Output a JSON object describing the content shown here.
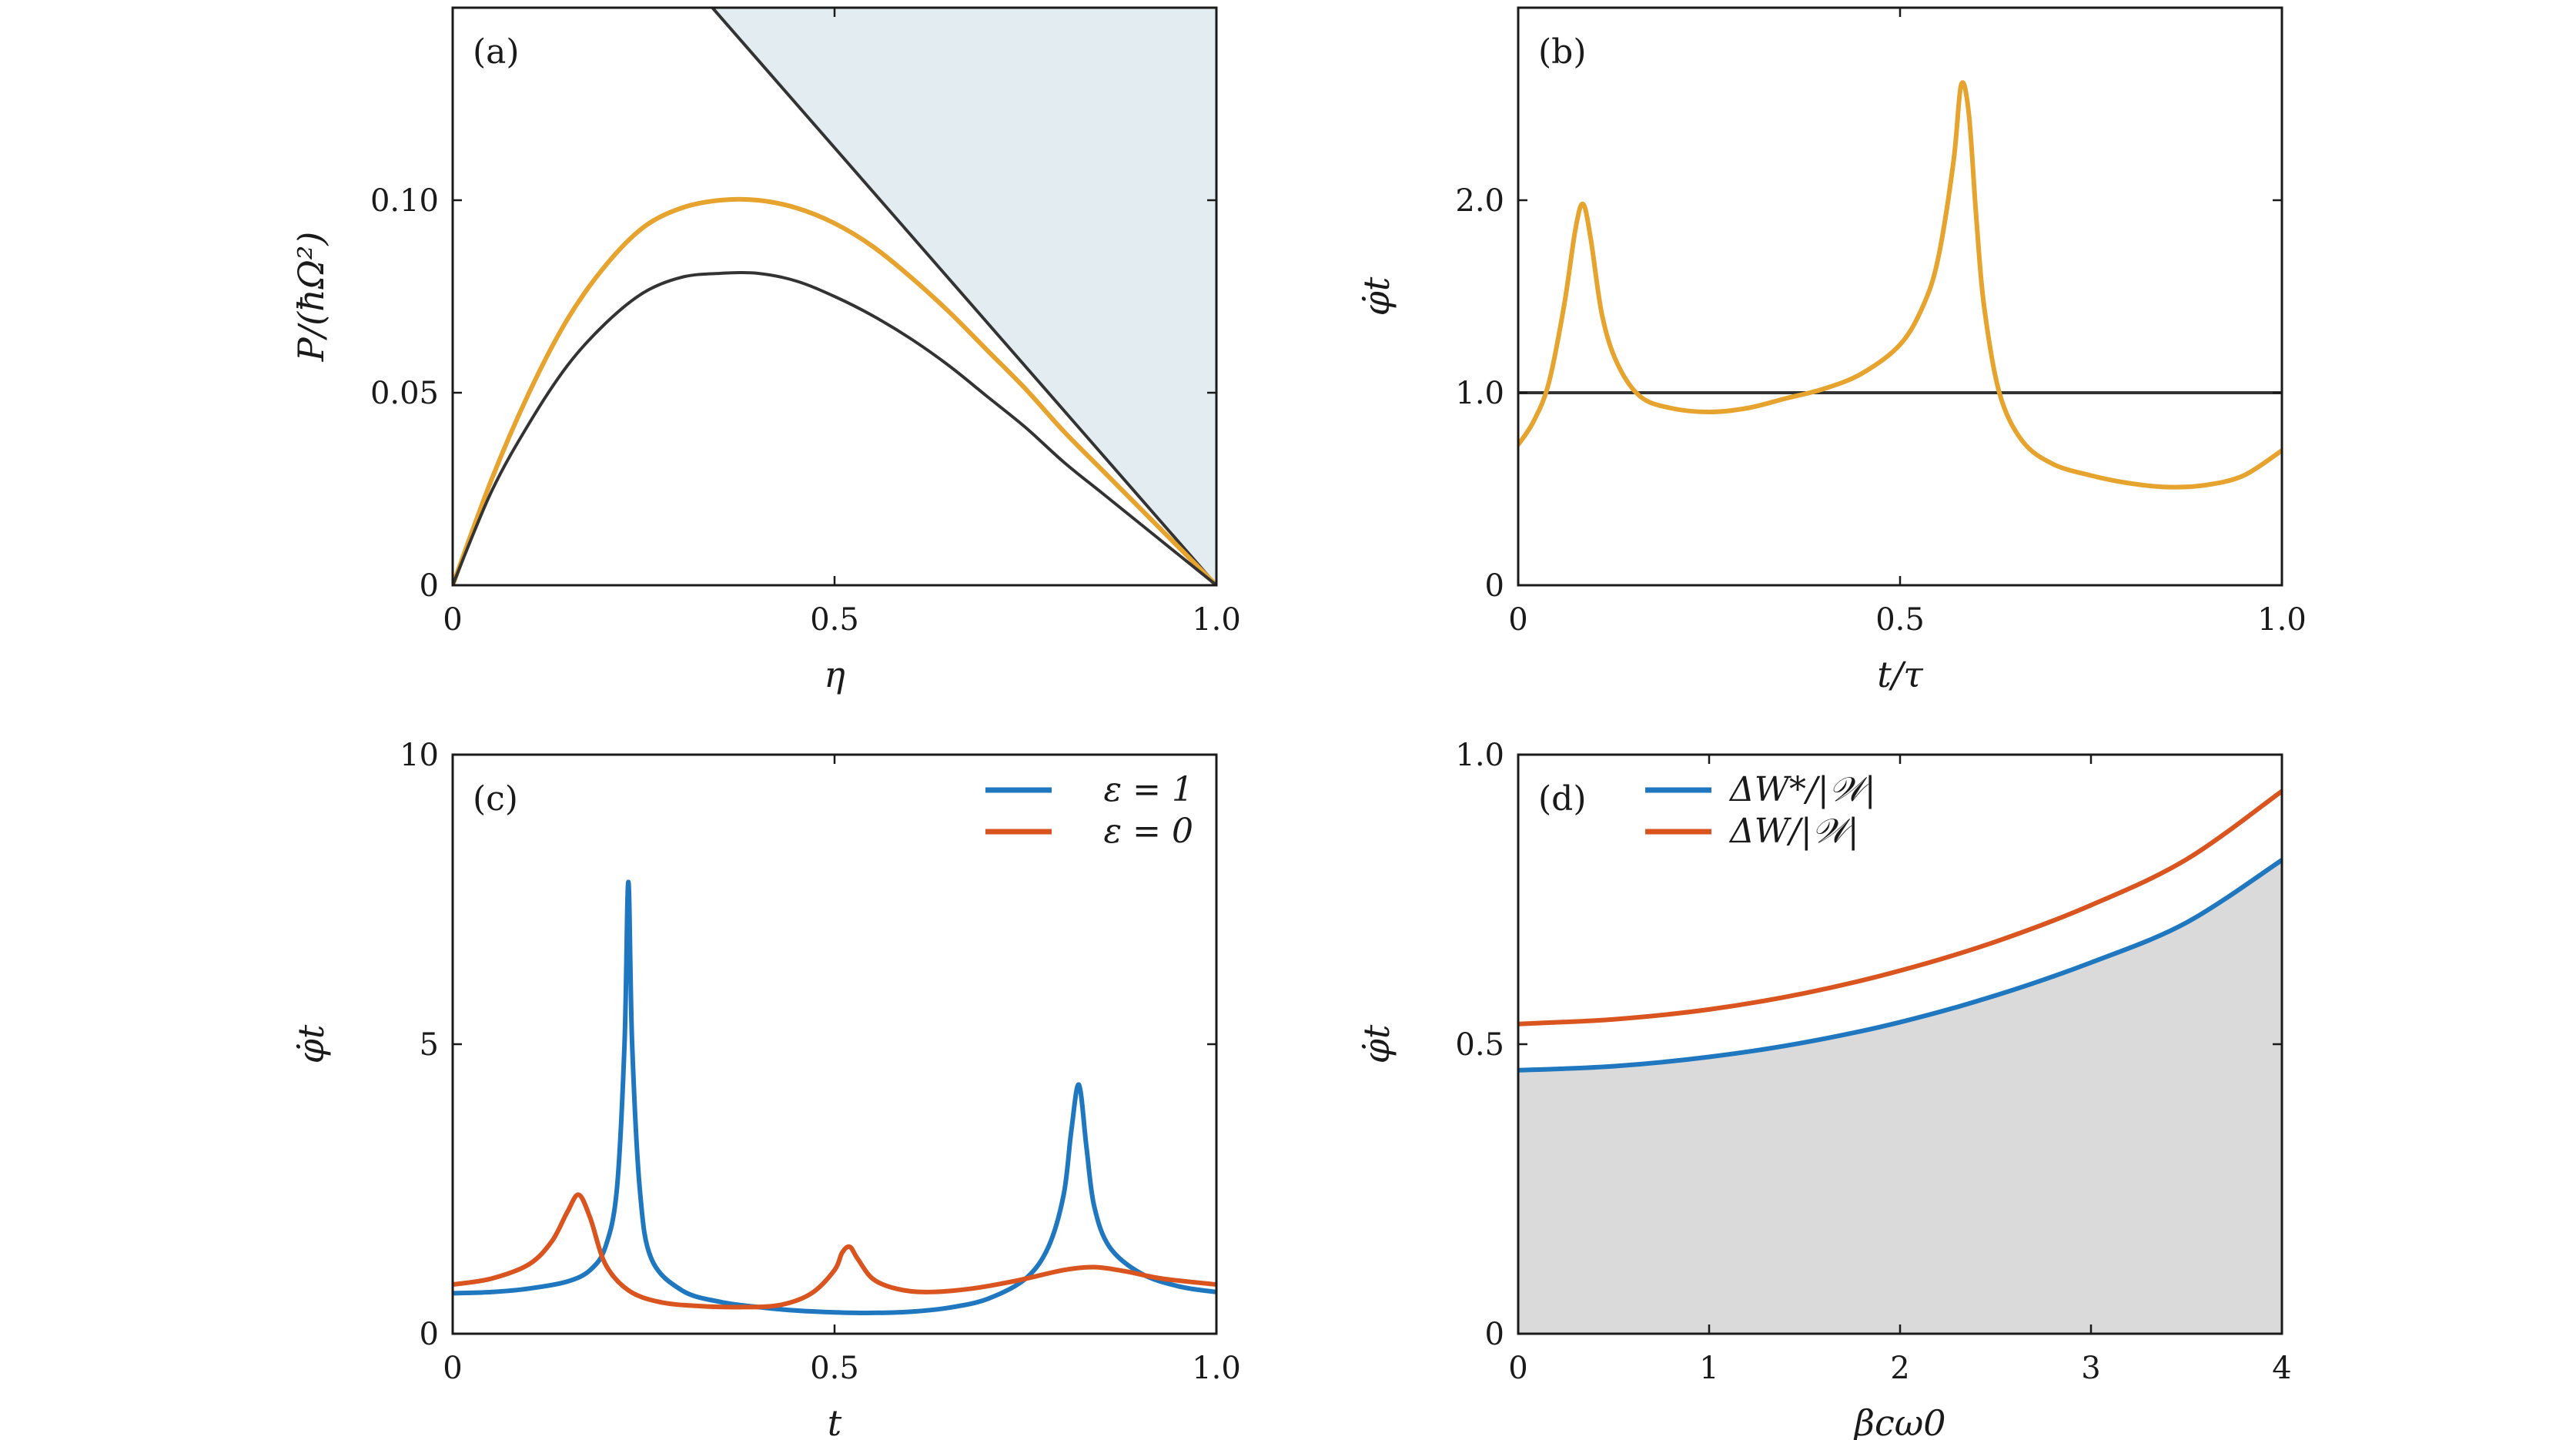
{
  "colors": {
    "orange": "#E6A32E",
    "blue": "#1F77C0",
    "red": "#D9541E",
    "black": "#333333",
    "shade_a": "#E3ECF0",
    "shade_d": "#DADADA"
  },
  "chart_data": [
    {
      "panel_label": "(a)",
      "type": "line",
      "xlabel": "η",
      "ylabel": "P/(ħΩ²)",
      "xlim": [
        0,
        1.0
      ],
      "ylim": [
        0,
        0.15
      ],
      "xticks": [
        0,
        0.5,
        1.0
      ],
      "xtick_labels": [
        "0",
        "0.5",
        "1.0"
      ],
      "yticks": [
        0,
        0.05,
        0.1
      ],
      "ytick_labels": [
        "0",
        "0.05",
        "0.10"
      ],
      "shaded_region": {
        "boundary_x": [
          0.34,
          1.0
        ],
        "boundary_y": [
          0.15,
          0.0
        ],
        "color": "#E3ECF0"
      },
      "series": [
        {
          "color": "#333333",
          "x": [
            0.34,
            1.0
          ],
          "y": [
            0.15,
            0.0
          ]
        },
        {
          "color": "#E6A32E",
          "x": [
            0,
            0.05,
            0.1,
            0.15,
            0.2,
            0.25,
            0.3,
            0.35,
            0.4,
            0.45,
            0.5,
            0.55,
            0.6,
            0.65,
            0.7,
            0.75,
            0.8,
            0.85,
            0.9,
            0.95,
            1.0
          ],
          "y": [
            0,
            0.027,
            0.05,
            0.069,
            0.083,
            0.093,
            0.098,
            0.1,
            0.1,
            0.098,
            0.094,
            0.088,
            0.08,
            0.071,
            0.061,
            0.051,
            0.04,
            0.03,
            0.02,
            0.01,
            0
          ]
        },
        {
          "color": "#333333",
          "x": [
            0,
            0.05,
            0.1,
            0.15,
            0.2,
            0.25,
            0.3,
            0.35,
            0.4,
            0.45,
            0.5,
            0.55,
            0.6,
            0.65,
            0.7,
            0.75,
            0.8,
            0.85,
            0.9,
            0.95,
            1.0
          ],
          "y": [
            0,
            0.024,
            0.042,
            0.057,
            0.068,
            0.076,
            0.08,
            0.081,
            0.081,
            0.079,
            0.075,
            0.07,
            0.064,
            0.057,
            0.049,
            0.041,
            0.032,
            0.024,
            0.016,
            0.008,
            0
          ]
        }
      ]
    },
    {
      "panel_label": "(b)",
      "type": "line",
      "xlabel": "t/τ",
      "ylabel": "φ̇t",
      "xlim": [
        0,
        1.0
      ],
      "ylim": [
        0,
        3.0
      ],
      "xticks": [
        0,
        0.5,
        1.0
      ],
      "xtick_labels": [
        "0",
        "0.5",
        "1.0"
      ],
      "yticks": [
        0,
        1.0,
        2.0
      ],
      "ytick_labels": [
        "0",
        "1.0",
        "2.0"
      ],
      "series": [
        {
          "color": "#333333",
          "x": [
            0,
            1.0
          ],
          "y": [
            1.0,
            1.0
          ]
        },
        {
          "color": "#E6A32E",
          "x": [
            0,
            0.02,
            0.04,
            0.06,
            0.075,
            0.085,
            0.095,
            0.11,
            0.13,
            0.16,
            0.2,
            0.25,
            0.3,
            0.35,
            0.4,
            0.45,
            0.5,
            0.53,
            0.55,
            0.57,
            0.58,
            0.59,
            0.6,
            0.61,
            0.63,
            0.66,
            0.7,
            0.75,
            0.8,
            0.85,
            0.9,
            0.95,
            1.0
          ],
          "y": [
            0.73,
            0.85,
            1.05,
            1.45,
            1.85,
            1.98,
            1.8,
            1.4,
            1.15,
            0.98,
            0.92,
            0.9,
            0.92,
            0.97,
            1.02,
            1.1,
            1.25,
            1.45,
            1.7,
            2.2,
            2.6,
            2.45,
            1.9,
            1.45,
            1.0,
            0.75,
            0.63,
            0.57,
            0.53,
            0.51,
            0.52,
            0.57,
            0.7
          ]
        }
      ]
    },
    {
      "panel_label": "(c)",
      "type": "line",
      "xlabel": "t",
      "ylabel": "φ̇t",
      "xlim": [
        0,
        1.0
      ],
      "ylim": [
        0,
        10
      ],
      "xticks": [
        0,
        0.5,
        1.0
      ],
      "xtick_labels": [
        "0",
        "0.5",
        "1.0"
      ],
      "yticks": [
        0,
        5,
        10
      ],
      "ytick_labels": [
        "0",
        "5",
        "10"
      ],
      "legend_position": "top-right",
      "series": [
        {
          "name": "ε = 1",
          "color": "#1F77C0",
          "x": [
            0,
            0.05,
            0.1,
            0.15,
            0.18,
            0.2,
            0.215,
            0.225,
            0.23,
            0.235,
            0.245,
            0.26,
            0.3,
            0.35,
            0.4,
            0.45,
            0.5,
            0.55,
            0.6,
            0.65,
            0.7,
            0.75,
            0.78,
            0.8,
            0.81,
            0.82,
            0.83,
            0.84,
            0.86,
            0.9,
            0.95,
            1.0
          ],
          "y": [
            0.7,
            0.72,
            0.78,
            0.9,
            1.1,
            1.5,
            2.5,
            5.0,
            7.8,
            5.0,
            2.5,
            1.3,
            0.75,
            0.55,
            0.46,
            0.4,
            0.37,
            0.36,
            0.38,
            0.45,
            0.6,
            0.95,
            1.5,
            2.4,
            3.5,
            4.3,
            3.2,
            2.2,
            1.5,
            1.05,
            0.82,
            0.72
          ]
        },
        {
          "name": "ε = 0",
          "color": "#D9541E",
          "x": [
            0,
            0.05,
            0.1,
            0.13,
            0.15,
            0.165,
            0.18,
            0.2,
            0.23,
            0.27,
            0.32,
            0.38,
            0.43,
            0.47,
            0.5,
            0.51,
            0.52,
            0.53,
            0.55,
            0.58,
            0.62,
            0.68,
            0.74,
            0.8,
            0.84,
            0.88,
            0.93,
            1.0
          ],
          "y": [
            0.85,
            0.95,
            1.2,
            1.6,
            2.1,
            2.4,
            2.0,
            1.2,
            0.75,
            0.55,
            0.48,
            0.46,
            0.5,
            0.7,
            1.1,
            1.4,
            1.5,
            1.3,
            0.95,
            0.78,
            0.72,
            0.78,
            0.92,
            1.1,
            1.15,
            1.08,
            0.95,
            0.85
          ]
        }
      ]
    },
    {
      "panel_label": "(d)",
      "type": "line",
      "xlabel": "βcω0",
      "ylabel": "φ̇t",
      "xlim": [
        0,
        4
      ],
      "ylim": [
        0,
        1.0
      ],
      "xticks": [
        0,
        1,
        2,
        3,
        4
      ],
      "xtick_labels": [
        "0",
        "1",
        "2",
        "3",
        "4"
      ],
      "yticks": [
        0,
        0.5,
        1.0
      ],
      "ytick_labels": [
        "0",
        "0.5",
        "1.0"
      ],
      "legend_position": "top-left",
      "shaded_under_series": 0,
      "series": [
        {
          "name": "ΔW*/|𝒲|",
          "color": "#1F77C0",
          "x": [
            0,
            0.5,
            1,
            1.5,
            2,
            2.5,
            3,
            3.5,
            4
          ],
          "y": [
            0.455,
            0.462,
            0.478,
            0.503,
            0.538,
            0.584,
            0.641,
            0.71,
            0.818
          ]
        },
        {
          "name": "ΔW/|𝒲|",
          "color": "#D9541E",
          "x": [
            0,
            0.5,
            1,
            1.5,
            2,
            2.5,
            3,
            3.5,
            4
          ],
          "y": [
            0.535,
            0.543,
            0.56,
            0.588,
            0.627,
            0.677,
            0.74,
            0.819,
            0.937
          ]
        }
      ]
    }
  ]
}
